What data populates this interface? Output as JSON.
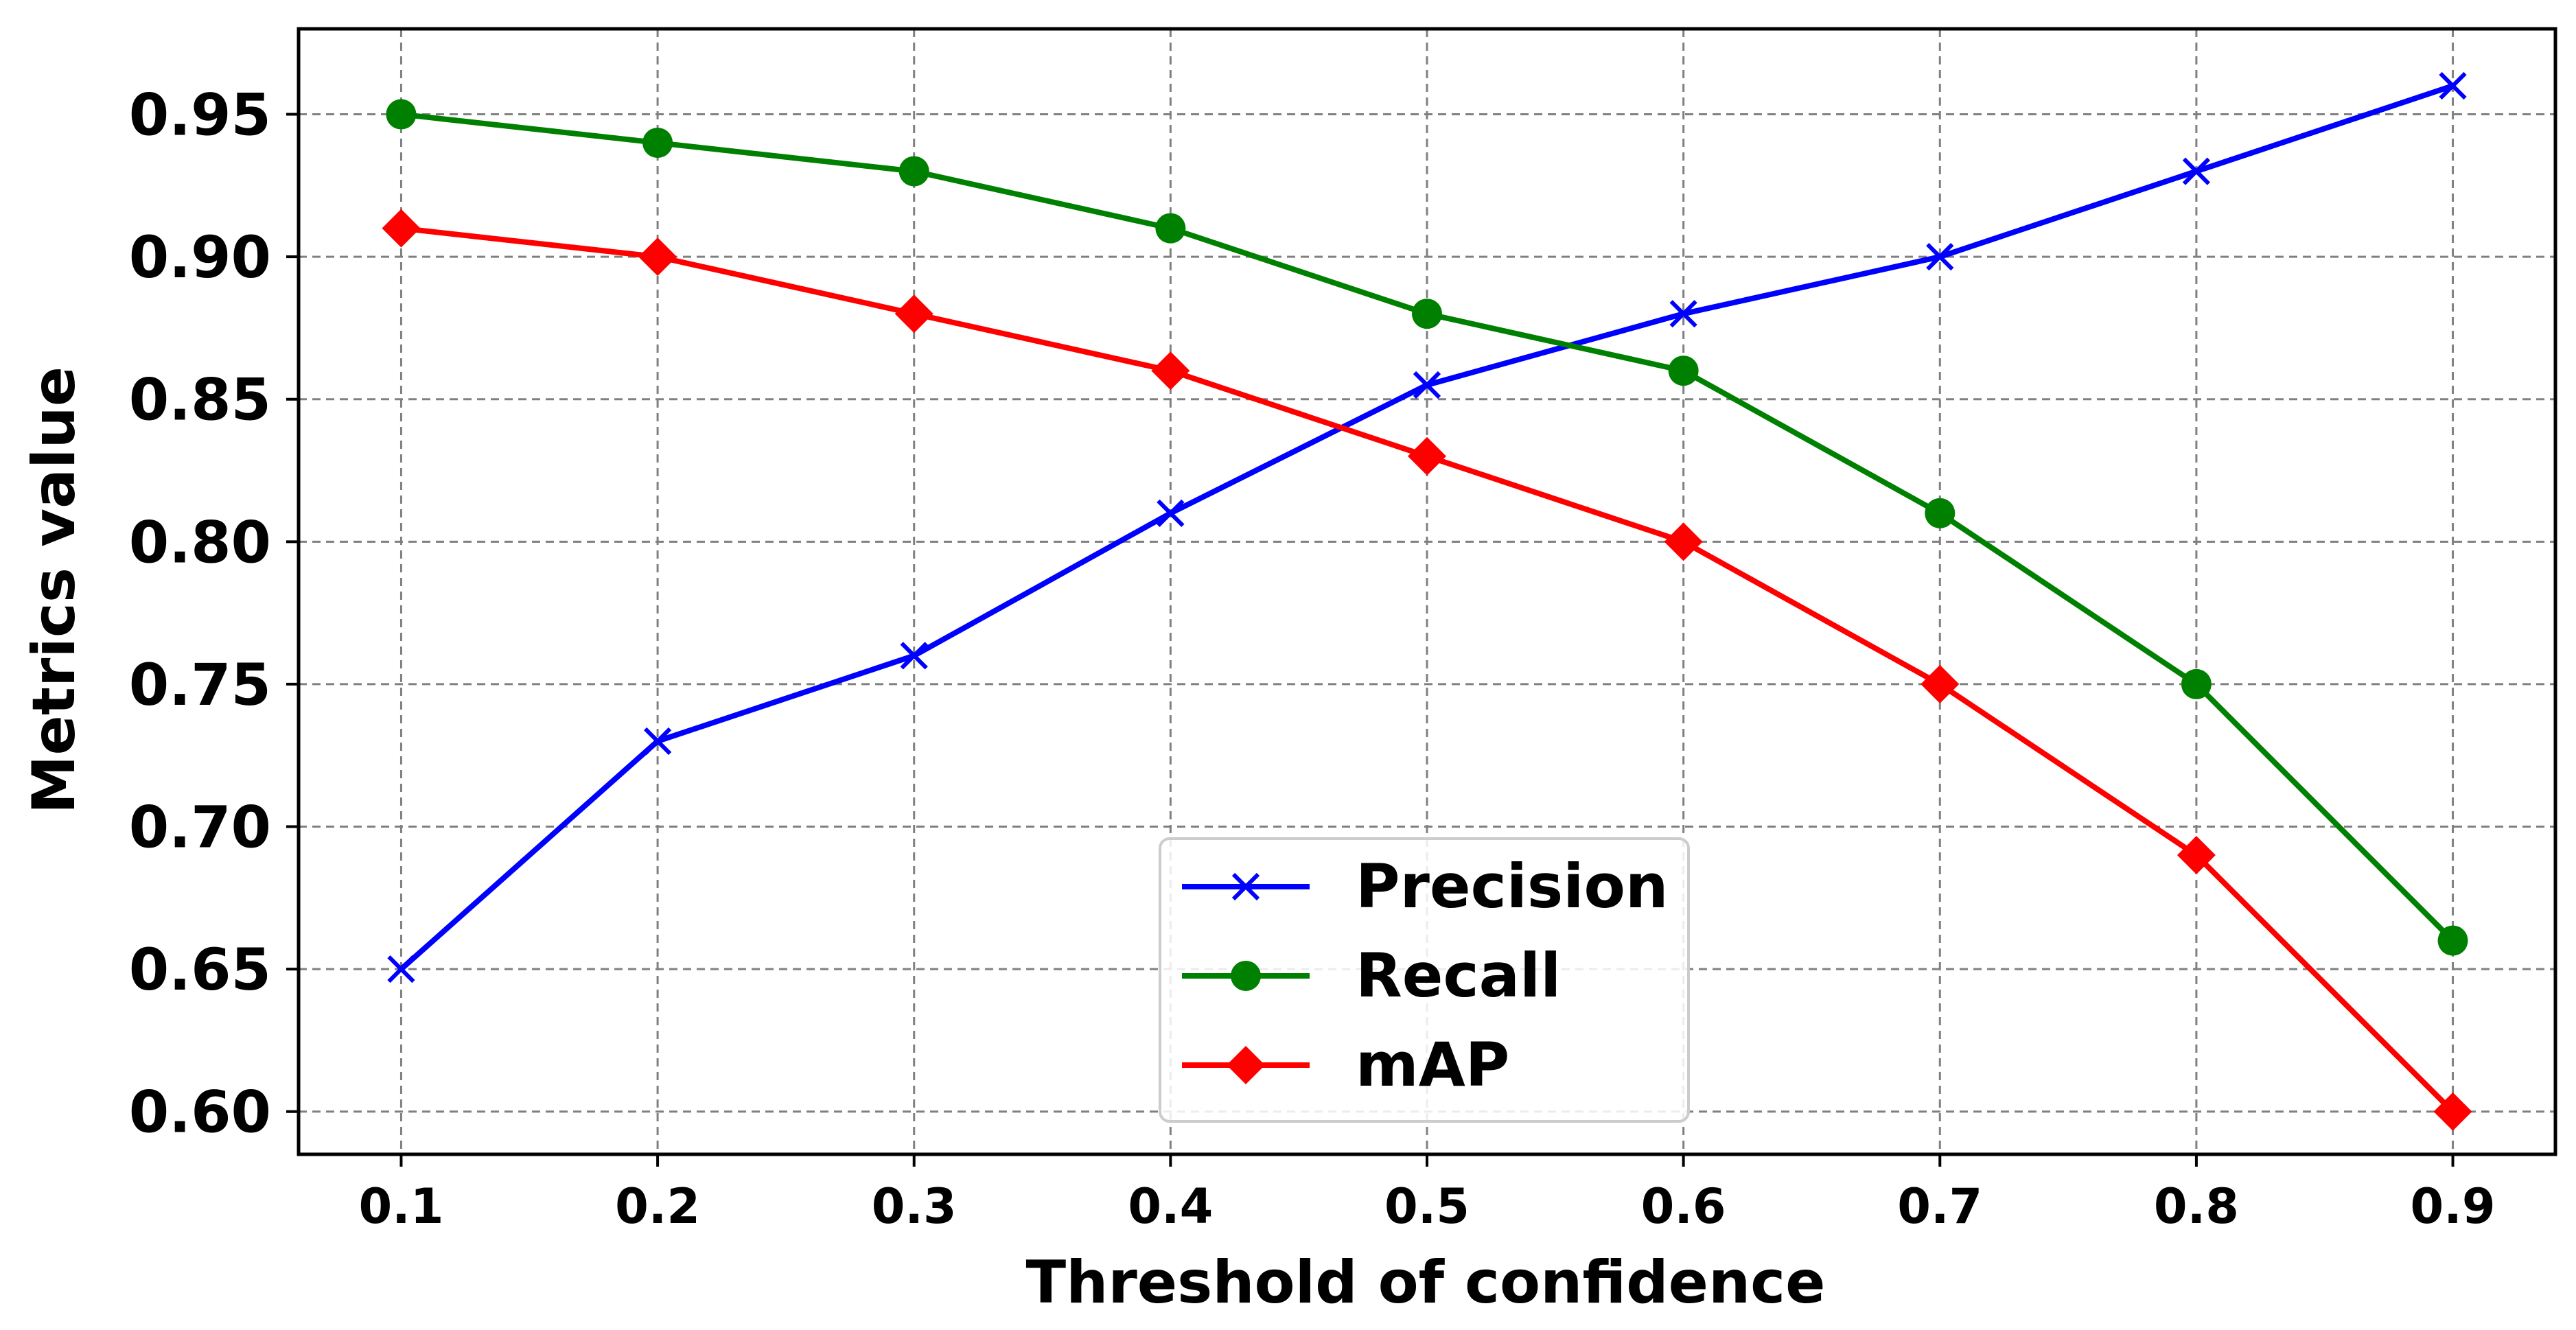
{
  "chart_data": {
    "type": "line",
    "title": "",
    "xlabel": "Threshold of confidence",
    "ylabel": "Metrics value",
    "x": [
      0.1,
      0.2,
      0.3,
      0.4,
      0.5,
      0.6,
      0.7,
      0.8,
      0.9
    ],
    "x_tick_labels": [
      "0.1",
      "0.2",
      "0.3",
      "0.4",
      "0.5",
      "0.6",
      "0.7",
      "0.8",
      "0.9"
    ],
    "y_ticks": [
      0.6,
      0.65,
      0.7,
      0.75,
      0.8,
      0.85,
      0.9,
      0.95
    ],
    "y_tick_labels": [
      "0.60",
      "0.65",
      "0.70",
      "0.75",
      "0.80",
      "0.85",
      "0.90",
      "0.95"
    ],
    "xlim": [
      0.06,
      0.94
    ],
    "ylim": [
      0.585,
      0.98
    ],
    "grid": true,
    "legend_position": "bottom-center",
    "series": [
      {
        "name": "Precision",
        "color": "#0000ff",
        "marker": "x",
        "values": [
          0.65,
          0.73,
          0.76,
          0.81,
          0.855,
          0.88,
          0.9,
          0.93,
          0.96
        ]
      },
      {
        "name": "Recall",
        "color": "#008000",
        "marker": "circle",
        "values": [
          0.95,
          0.94,
          0.93,
          0.91,
          0.88,
          0.86,
          0.81,
          0.75,
          0.66
        ]
      },
      {
        "name": "mAP",
        "color": "#ff0000",
        "marker": "diamond",
        "values": [
          0.91,
          0.9,
          0.88,
          0.86,
          0.83,
          0.8,
          0.75,
          0.69,
          0.6
        ]
      }
    ]
  }
}
